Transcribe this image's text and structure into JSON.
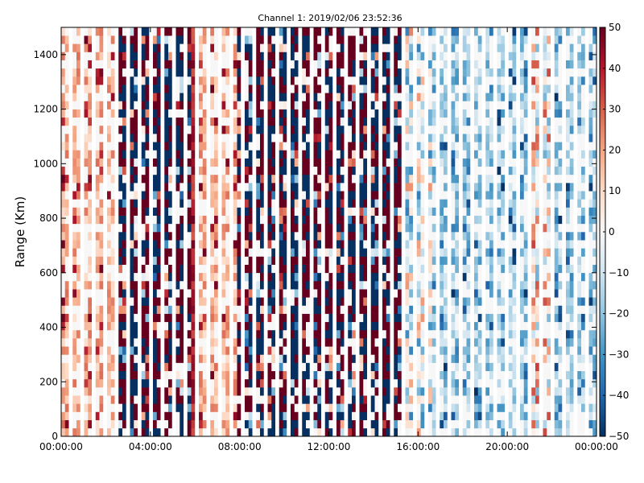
{
  "chart_data": {
    "type": "heatmap",
    "title": "Channel 1: 2019/02/06 23:52:36",
    "xlabel": "",
    "ylabel": "Range (Km)",
    "x_tick_labels": [
      "00:00:00",
      "04:00:00",
      "08:00:00",
      "12:00:00",
      "16:00:00",
      "20:00:00",
      "00:00:00"
    ],
    "x_tick_hours": [
      0,
      4,
      8,
      12,
      16,
      20,
      24
    ],
    "xlim_hours": [
      0,
      24
    ],
    "y_ticks": [
      0,
      200,
      400,
      600,
      800,
      1000,
      1200,
      1400
    ],
    "ylim": [
      0,
      1500
    ],
    "colorbar": {
      "ticks": [
        50,
        40,
        30,
        20,
        10,
        0,
        -10,
        -20,
        -30,
        -40,
        -50
      ],
      "tick_labels": [
        "50",
        "40",
        "30",
        "20",
        "10",
        "0",
        "−10",
        "−20",
        "−30",
        "−40",
        "−50"
      ],
      "vmin": -50,
      "vmax": 50,
      "colormap": "RdBu_r"
    },
    "grid": false,
    "time_segments": [
      {
        "start_hour": 0.0,
        "end_hour": 2.4,
        "pattern": "positive-light",
        "mean": 15
      },
      {
        "start_hour": 2.4,
        "end_hour": 5.9,
        "pattern": "noisy-saturated",
        "mean": 0
      },
      {
        "start_hour": 5.9,
        "end_hour": 6.2,
        "pattern": "positive-strong",
        "mean": 40
      },
      {
        "start_hour": 6.2,
        "end_hour": 7.9,
        "pattern": "positive-light",
        "mean": 18
      },
      {
        "start_hour": 7.9,
        "end_hour": 15.3,
        "pattern": "noisy-saturated",
        "mean": 0
      },
      {
        "start_hour": 15.3,
        "end_hour": 16.6,
        "pattern": "mixed",
        "mean": -5
      },
      {
        "start_hour": 16.6,
        "end_hour": 20.9,
        "pattern": "negative-light",
        "mean": -18
      },
      {
        "start_hour": 20.9,
        "end_hour": 21.9,
        "pattern": "mixed",
        "mean": 5
      },
      {
        "start_hour": 21.9,
        "end_hour": 24.0,
        "pattern": "negative-light",
        "mean": -12
      }
    ]
  }
}
